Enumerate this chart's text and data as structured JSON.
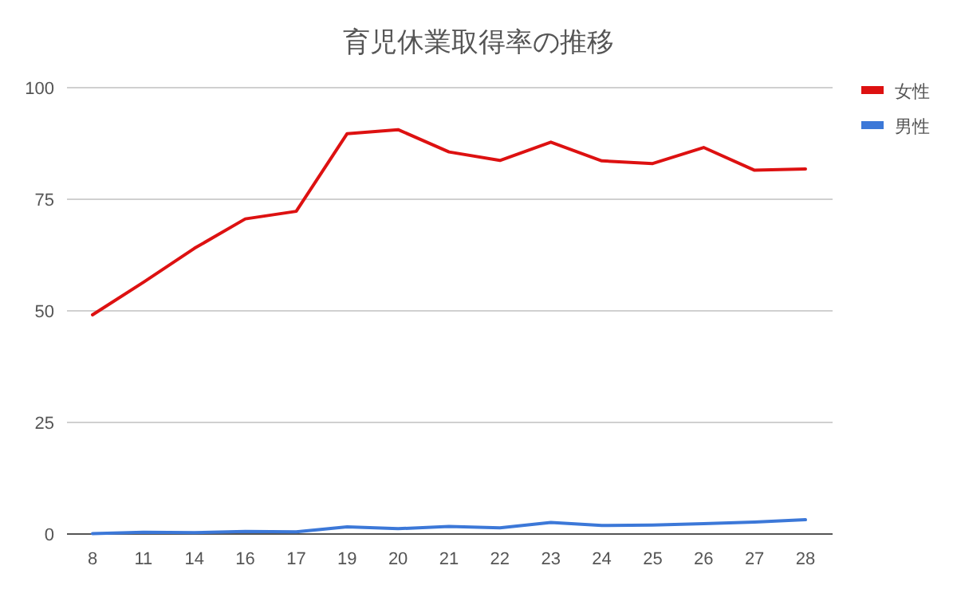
{
  "chart_data": {
    "type": "line",
    "title": "育児休業取得率の推移",
    "categories": [
      "8",
      "11",
      "14",
      "16",
      "17",
      "19",
      "20",
      "21",
      "22",
      "23",
      "24",
      "25",
      "26",
      "27",
      "28"
    ],
    "series": [
      {
        "name": "女性",
        "color": "#dd1111",
        "values": [
          49.1,
          56.4,
          64.0,
          70.6,
          72.3,
          89.7,
          90.6,
          85.6,
          83.7,
          87.8,
          83.6,
          83.0,
          86.6,
          81.5,
          81.8
        ]
      },
      {
        "name": "男性",
        "color": "#3c78d8",
        "values": [
          0.1,
          0.4,
          0.3,
          0.6,
          0.5,
          1.6,
          1.2,
          1.7,
          1.4,
          2.6,
          1.9,
          2.0,
          2.3,
          2.7,
          3.2
        ]
      }
    ],
    "ylim": [
      0,
      100
    ],
    "yticks": [
      0,
      25,
      50,
      75,
      100
    ],
    "grid": "y",
    "legend": "top right",
    "marker": "none",
    "line_style": "solid"
  }
}
